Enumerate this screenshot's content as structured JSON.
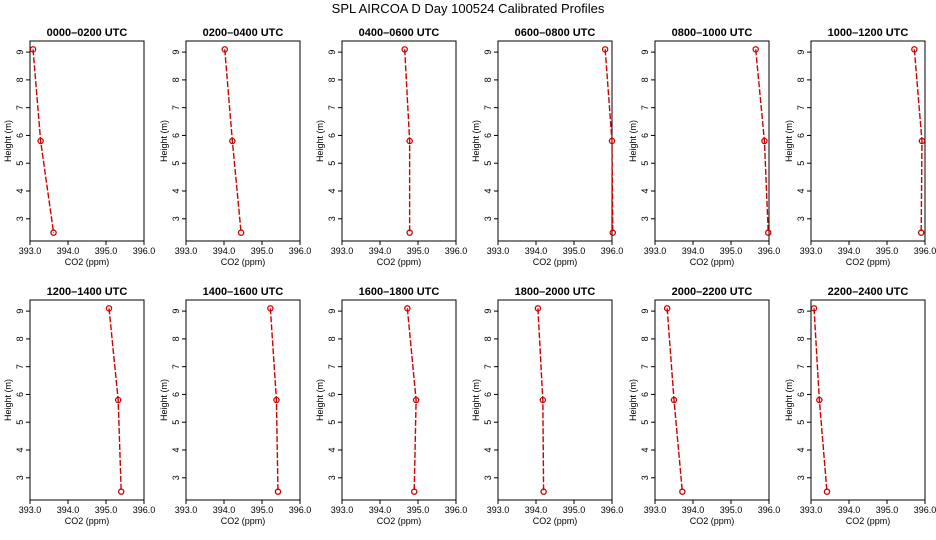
{
  "title": "SPL AIRCOA D  Day 100524  Calibrated Profiles",
  "colors": {
    "series": "#cc0000",
    "axis": "#000000"
  },
  "chart_data": {
    "type": "line",
    "xlabel": "CO2 (ppm)",
    "ylabel": "Height (m)",
    "xlim": [
      393.0,
      396.0
    ],
    "ylim": [
      2.2,
      9.4
    ],
    "xticks": [
      393.0,
      394.0,
      395.0,
      396.0
    ],
    "xtick_labels": [
      "393.0",
      "394.0",
      "395.0",
      "396.0"
    ],
    "yticks": [
      3,
      4,
      5,
      6,
      7,
      8,
      9
    ],
    "ytick_labels": [
      "3",
      "4",
      "5",
      "6",
      "7",
      "8",
      "9"
    ],
    "heights": [
      9.1,
      5.8,
      2.5
    ],
    "panels": [
      {
        "title": "0000–0200 UTC",
        "co2": [
          393.08,
          393.28,
          393.62
        ]
      },
      {
        "title": "0200–0400 UTC",
        "co2": [
          394.02,
          394.22,
          394.45
        ]
      },
      {
        "title": "0400–0600 UTC",
        "co2": [
          394.65,
          394.78,
          394.78
        ]
      },
      {
        "title": "0600–0800 UTC",
        "co2": [
          395.82,
          396.0,
          396.02
        ]
      },
      {
        "title": "0800–1000 UTC",
        "co2": [
          395.65,
          395.88,
          395.98
        ]
      },
      {
        "title": "1000–1200 UTC",
        "co2": [
          395.72,
          395.92,
          395.9
        ]
      },
      {
        "title": "1200–1400 UTC",
        "co2": [
          395.08,
          395.32,
          395.4
        ]
      },
      {
        "title": "1400–1600 UTC",
        "co2": [
          395.22,
          395.38,
          395.42
        ]
      },
      {
        "title": "1600–1800 UTC",
        "co2": [
          394.72,
          394.95,
          394.9
        ]
      },
      {
        "title": "1800–2000 UTC",
        "co2": [
          394.05,
          394.18,
          394.2
        ]
      },
      {
        "title": "2000–2200 UTC",
        "co2": [
          393.32,
          393.5,
          393.72
        ]
      },
      {
        "title": "2200–2400 UTC",
        "co2": [
          393.08,
          393.22,
          393.42
        ]
      }
    ]
  }
}
